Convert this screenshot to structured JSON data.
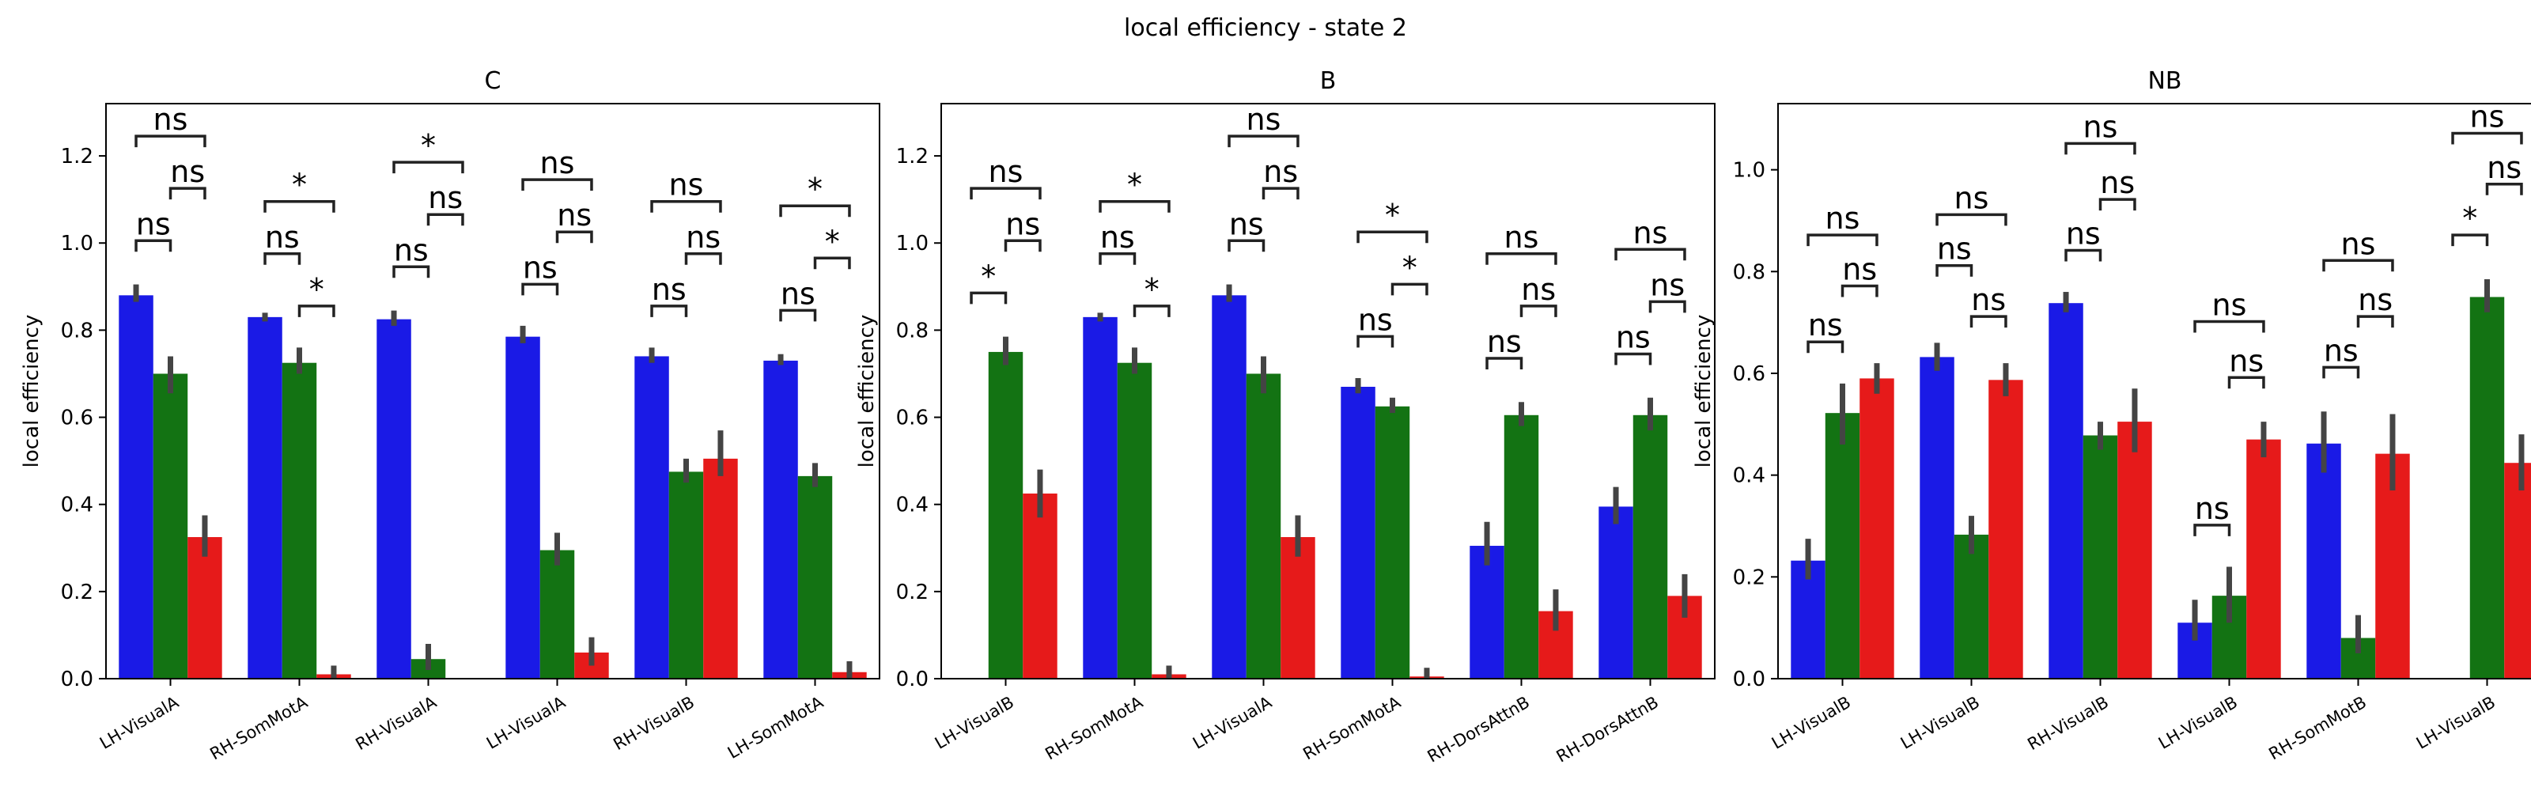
{
  "figure": {
    "suptitle": "local efficiency - state 2"
  },
  "colors": {
    "series1": "#1a1ae6",
    "series2": "#137313",
    "series3": "#e61a1a",
    "errorbar": "#444444",
    "bracket": "#222222"
  },
  "chart_data": [
    {
      "type": "bar",
      "title": "C",
      "xlabel": "",
      "ylabel": "local efficiency",
      "ylim": [
        0,
        1.32
      ],
      "yticks": [
        0.0,
        0.2,
        0.4,
        0.6,
        0.8,
        1.0,
        1.2
      ],
      "ytick_labels": [
        "0.0",
        "0.2",
        "0.4",
        "0.6",
        "0.8",
        "1.0",
        "1.2"
      ],
      "categories": [
        "LH-VisualA",
        "RH-SomMotA",
        "RH-VisualA",
        "LH-VisualA",
        "RH-VisualB",
        "LH-SomMotA"
      ],
      "series": [
        {
          "values": [
            0.88,
            0.83,
            0.825,
            0.785,
            0.74,
            0.73
          ],
          "err_low": [
            0.865,
            0.82,
            0.81,
            0.77,
            0.725,
            0.72
          ],
          "err_high": [
            0.905,
            0.84,
            0.845,
            0.81,
            0.76,
            0.745
          ]
        },
        {
          "values": [
            0.7,
            0.725,
            0.045,
            0.295,
            0.475,
            0.465
          ],
          "err_low": [
            0.655,
            0.7,
            0.02,
            0.26,
            0.45,
            0.44
          ],
          "err_high": [
            0.74,
            0.76,
            0.08,
            0.335,
            0.505,
            0.495
          ]
        },
        {
          "values": [
            0.325,
            0.01,
            0.0,
            0.06,
            0.505,
            0.015
          ],
          "err_low": [
            0.28,
            0.0,
            0.0,
            0.03,
            0.465,
            0.0
          ],
          "err_high": [
            0.375,
            0.03,
            0.0,
            0.095,
            0.57,
            0.04
          ]
        }
      ],
      "annotations": [
        {
          "category": 0,
          "from": 0,
          "to": 1,
          "y": 0.98,
          "label": "ns"
        },
        {
          "category": 0,
          "from": 1,
          "to": 2,
          "y": 1.1,
          "label": "ns"
        },
        {
          "category": 0,
          "from": 0,
          "to": 2,
          "y": 1.22,
          "label": "ns"
        },
        {
          "category": 1,
          "from": 0,
          "to": 1,
          "y": 0.95,
          "label": "ns"
        },
        {
          "category": 1,
          "from": 1,
          "to": 2,
          "y": 0.83,
          "label": "*"
        },
        {
          "category": 1,
          "from": 0,
          "to": 2,
          "y": 1.07,
          "label": "*"
        },
        {
          "category": 2,
          "from": 0,
          "to": 1,
          "y": 0.92,
          "label": "ns"
        },
        {
          "category": 2,
          "from": 1,
          "to": 2,
          "y": 1.04,
          "label": "ns"
        },
        {
          "category": 2,
          "from": 0,
          "to": 2,
          "y": 1.16,
          "label": "*"
        },
        {
          "category": 3,
          "from": 0,
          "to": 1,
          "y": 0.88,
          "label": "ns"
        },
        {
          "category": 3,
          "from": 1,
          "to": 2,
          "y": 1.0,
          "label": "ns"
        },
        {
          "category": 3,
          "from": 0,
          "to": 2,
          "y": 1.12,
          "label": "ns"
        },
        {
          "category": 4,
          "from": 0,
          "to": 1,
          "y": 0.83,
          "label": "ns"
        },
        {
          "category": 4,
          "from": 1,
          "to": 2,
          "y": 0.95,
          "label": "ns"
        },
        {
          "category": 4,
          "from": 0,
          "to": 2,
          "y": 1.07,
          "label": "ns"
        },
        {
          "category": 5,
          "from": 0,
          "to": 1,
          "y": 0.82,
          "label": "ns"
        },
        {
          "category": 5,
          "from": 1,
          "to": 2,
          "y": 0.94,
          "label": "*"
        },
        {
          "category": 5,
          "from": 0,
          "to": 2,
          "y": 1.06,
          "label": "*"
        }
      ]
    },
    {
      "type": "bar",
      "title": "B",
      "xlabel": "",
      "ylabel": "local efficiency",
      "ylim": [
        0,
        1.32
      ],
      "yticks": [
        0.0,
        0.2,
        0.4,
        0.6,
        0.8,
        1.0,
        1.2
      ],
      "ytick_labels": [
        "0.0",
        "0.2",
        "0.4",
        "0.6",
        "0.8",
        "1.0",
        "1.2"
      ],
      "categories": [
        "LH-VisualB",
        "RH-SomMotA",
        "LH-VisualA",
        "RH-SomMotA",
        "RH-DorsAttnB",
        "RH-DorsAttnB"
      ],
      "series": [
        {
          "values": [
            0.0,
            0.83,
            0.88,
            0.67,
            0.305,
            0.395
          ],
          "err_low": [
            0.0,
            0.82,
            0.865,
            0.655,
            0.26,
            0.355
          ],
          "err_high": [
            0.0,
            0.84,
            0.905,
            0.69,
            0.36,
            0.44
          ]
        },
        {
          "values": [
            0.75,
            0.725,
            0.7,
            0.625,
            0.605,
            0.605
          ],
          "err_low": [
            0.72,
            0.7,
            0.655,
            0.61,
            0.58,
            0.57
          ],
          "err_high": [
            0.785,
            0.76,
            0.74,
            0.645,
            0.635,
            0.645
          ]
        },
        {
          "values": [
            0.425,
            0.01,
            0.325,
            0.005,
            0.155,
            0.19
          ],
          "err_low": [
            0.37,
            0.0,
            0.28,
            0.0,
            0.11,
            0.14
          ],
          "err_high": [
            0.48,
            0.03,
            0.375,
            0.025,
            0.205,
            0.24
          ]
        }
      ],
      "annotations": [
        {
          "category": 0,
          "from": 0,
          "to": 1,
          "y": 0.86,
          "label": "*"
        },
        {
          "category": 0,
          "from": 1,
          "to": 2,
          "y": 0.98,
          "label": "ns"
        },
        {
          "category": 0,
          "from": 0,
          "to": 2,
          "y": 1.1,
          "label": "ns"
        },
        {
          "category": 1,
          "from": 0,
          "to": 1,
          "y": 0.95,
          "label": "ns"
        },
        {
          "category": 1,
          "from": 1,
          "to": 2,
          "y": 0.83,
          "label": "*"
        },
        {
          "category": 1,
          "from": 0,
          "to": 2,
          "y": 1.07,
          "label": "*"
        },
        {
          "category": 2,
          "from": 0,
          "to": 1,
          "y": 0.98,
          "label": "ns"
        },
        {
          "category": 2,
          "from": 1,
          "to": 2,
          "y": 1.1,
          "label": "ns"
        },
        {
          "category": 2,
          "from": 0,
          "to": 2,
          "y": 1.22,
          "label": "ns"
        },
        {
          "category": 3,
          "from": 0,
          "to": 1,
          "y": 0.76,
          "label": "ns"
        },
        {
          "category": 3,
          "from": 1,
          "to": 2,
          "y": 0.88,
          "label": "*"
        },
        {
          "category": 3,
          "from": 0,
          "to": 2,
          "y": 1.0,
          "label": "*"
        },
        {
          "category": 4,
          "from": 0,
          "to": 1,
          "y": 0.71,
          "label": "ns"
        },
        {
          "category": 4,
          "from": 1,
          "to": 2,
          "y": 0.83,
          "label": "ns"
        },
        {
          "category": 4,
          "from": 0,
          "to": 2,
          "y": 0.95,
          "label": "ns"
        },
        {
          "category": 5,
          "from": 0,
          "to": 1,
          "y": 0.72,
          "label": "ns"
        },
        {
          "category": 5,
          "from": 1,
          "to": 2,
          "y": 0.84,
          "label": "ns"
        },
        {
          "category": 5,
          "from": 0,
          "to": 2,
          "y": 0.96,
          "label": "ns"
        }
      ]
    },
    {
      "type": "bar",
      "title": "NB",
      "xlabel": "",
      "ylabel": "local efficiency",
      "ylim": [
        0,
        1.13
      ],
      "yticks": [
        0.0,
        0.2,
        0.4,
        0.6,
        0.8,
        1.0
      ],
      "ytick_labels": [
        "0.0",
        "0.2",
        "0.4",
        "0.6",
        "0.8",
        "1.0"
      ],
      "categories": [
        "LH-VisualB",
        "LH-VisualB",
        "RH-VisualB",
        "LH-VisualB",
        "RH-SomMotB",
        "LH-VisualB"
      ],
      "series": [
        {
          "values": [
            0.232,
            0.632,
            0.738,
            0.11,
            0.462,
            0.0
          ],
          "err_low": [
            0.195,
            0.605,
            0.72,
            0.075,
            0.405,
            0.0
          ],
          "err_high": [
            0.275,
            0.66,
            0.76,
            0.155,
            0.525,
            0.0
          ]
        },
        {
          "values": [
            0.522,
            0.283,
            0.478,
            0.163,
            0.08,
            0.75
          ],
          "err_low": [
            0.46,
            0.245,
            0.45,
            0.11,
            0.05,
            0.72
          ],
          "err_high": [
            0.58,
            0.32,
            0.505,
            0.22,
            0.125,
            0.785
          ]
        },
        {
          "values": [
            0.59,
            0.587,
            0.505,
            0.47,
            0.442,
            0.424
          ],
          "err_low": [
            0.56,
            0.555,
            0.445,
            0.435,
            0.37,
            0.37
          ],
          "err_high": [
            0.62,
            0.62,
            0.57,
            0.505,
            0.52,
            0.48
          ]
        }
      ],
      "annotations": [
        {
          "category": 0,
          "from": 0,
          "to": 1,
          "y": 0.64,
          "label": "ns"
        },
        {
          "category": 0,
          "from": 1,
          "to": 2,
          "y": 0.75,
          "label": "ns"
        },
        {
          "category": 0,
          "from": 0,
          "to": 2,
          "y": 0.85,
          "label": "ns"
        },
        {
          "category": 1,
          "from": 0,
          "to": 1,
          "y": 0.79,
          "label": "ns"
        },
        {
          "category": 1,
          "from": 1,
          "to": 2,
          "y": 0.69,
          "label": "ns"
        },
        {
          "category": 1,
          "from": 0,
          "to": 2,
          "y": 0.89,
          "label": "ns"
        },
        {
          "category": 2,
          "from": 0,
          "to": 1,
          "y": 0.82,
          "label": "ns"
        },
        {
          "category": 2,
          "from": 1,
          "to": 2,
          "y": 0.92,
          "label": "ns"
        },
        {
          "category": 2,
          "from": 0,
          "to": 2,
          "y": 1.03,
          "label": "ns"
        },
        {
          "category": 3,
          "from": 0,
          "to": 1,
          "y": 0.28,
          "label": "ns"
        },
        {
          "category": 3,
          "from": 1,
          "to": 2,
          "y": 0.57,
          "label": "ns"
        },
        {
          "category": 3,
          "from": 0,
          "to": 2,
          "y": 0.68,
          "label": "ns"
        },
        {
          "category": 4,
          "from": 0,
          "to": 1,
          "y": 0.59,
          "label": "ns"
        },
        {
          "category": 4,
          "from": 1,
          "to": 2,
          "y": 0.69,
          "label": "ns"
        },
        {
          "category": 4,
          "from": 0,
          "to": 2,
          "y": 0.8,
          "label": "ns"
        },
        {
          "category": 5,
          "from": 0,
          "to": 1,
          "y": 0.85,
          "label": "*"
        },
        {
          "category": 5,
          "from": 1,
          "to": 2,
          "y": 0.95,
          "label": "ns"
        },
        {
          "category": 5,
          "from": 0,
          "to": 2,
          "y": 1.05,
          "label": "ns"
        }
      ]
    }
  ]
}
